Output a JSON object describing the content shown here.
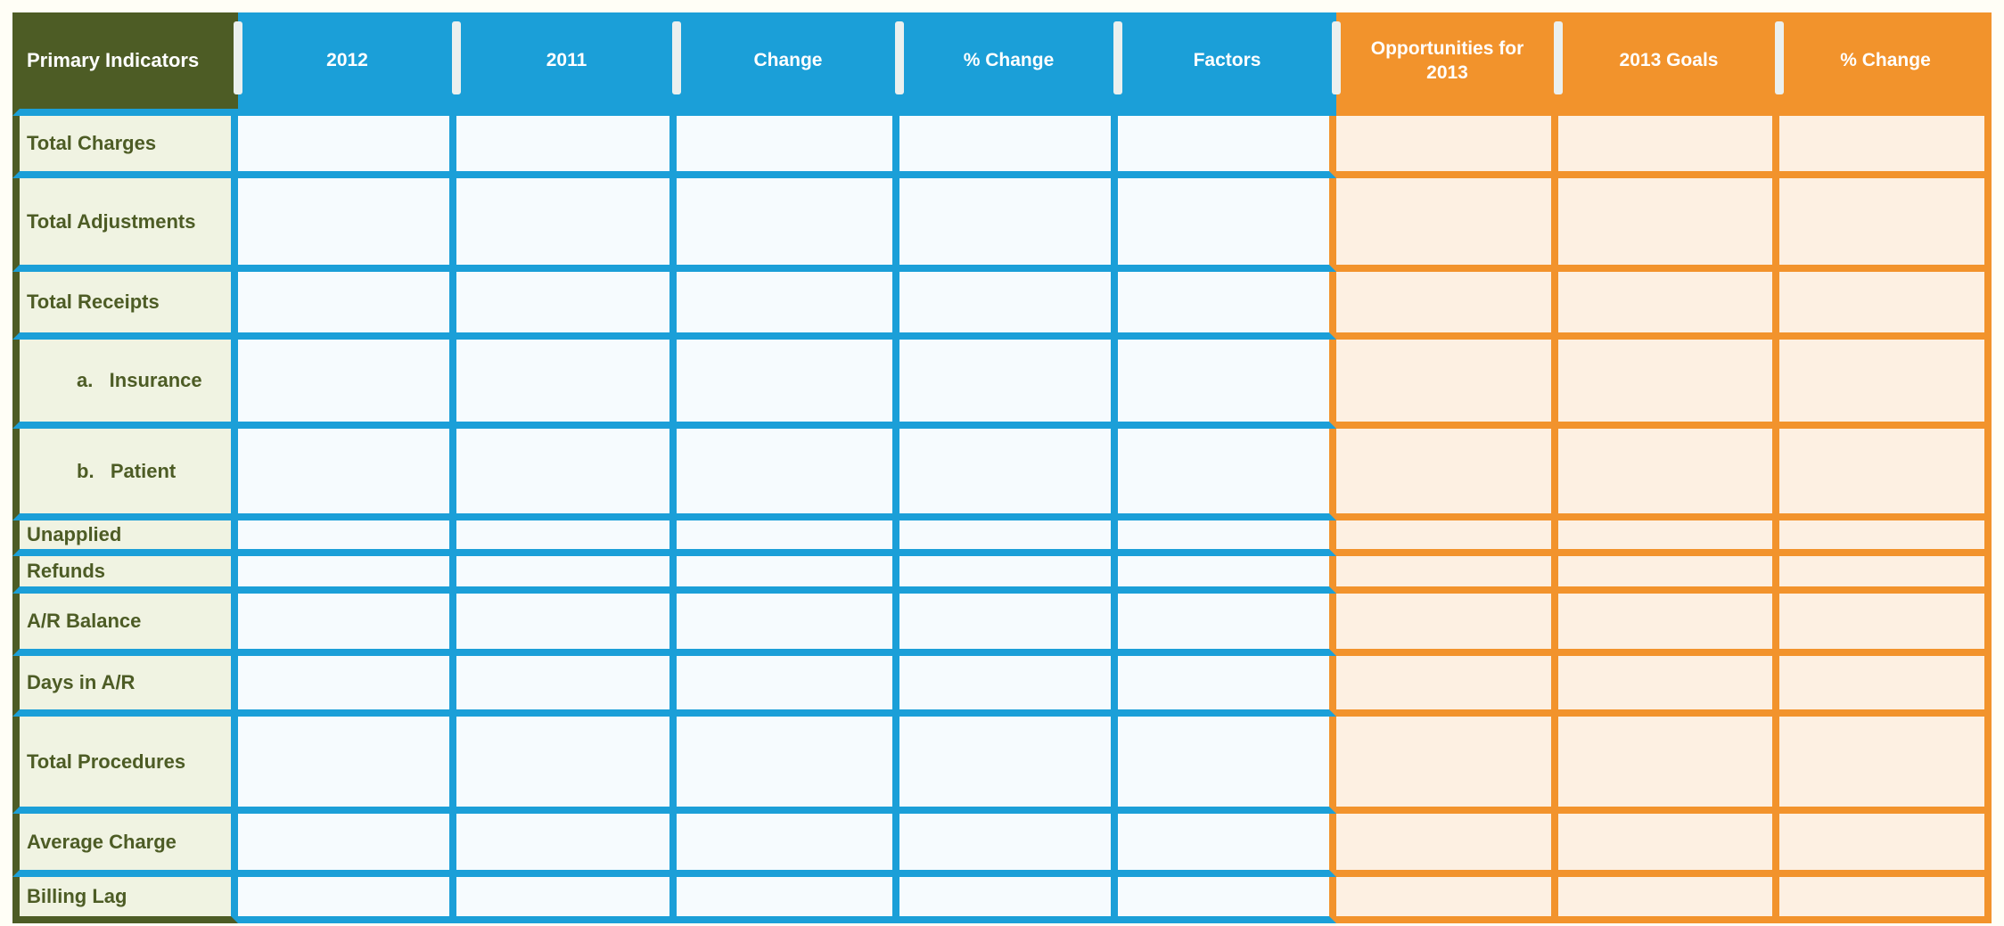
{
  "colors": {
    "olive": "#4d5c25",
    "olive_row_bg": "#f0f3e2",
    "blue": "#1b9fd8",
    "blue_cell_bg": "#f6fbfe",
    "orange": "#f2932c",
    "orange_cell_bg": "#fdf0e2",
    "header_text": "#ffffff",
    "separator": "#ebf0ef",
    "page_background": "#fffef6"
  },
  "table": {
    "columns": [
      {
        "label": "Primary Indicators",
        "section": "label"
      },
      {
        "label": "2012",
        "section": "blue"
      },
      {
        "label": "2011",
        "section": "blue"
      },
      {
        "label": "Change",
        "section": "blue"
      },
      {
        "label": "% Change",
        "section": "blue"
      },
      {
        "label": "Factors",
        "section": "blue"
      },
      {
        "label": "Opportunities for 2013",
        "section": "orange"
      },
      {
        "label": "2013 Goals",
        "section": "orange"
      },
      {
        "label": "% Change",
        "section": "orange"
      }
    ],
    "rows": [
      {
        "label": "Total Charges",
        "indent": false
      },
      {
        "label": "Total Adjustments",
        "indent": false
      },
      {
        "label": "Total Receipts",
        "indent": false
      },
      {
        "label": "a.   Insurance",
        "indent": true
      },
      {
        "label": "b.   Patient",
        "indent": true
      },
      {
        "label": "Unapplied",
        "indent": false
      },
      {
        "label": "Refunds",
        "indent": false
      },
      {
        "label": "A/R Balance",
        "indent": false
      },
      {
        "label": "Days in A/R",
        "indent": false
      },
      {
        "label": "Total Procedures",
        "indent": false
      },
      {
        "label": "Average Charge",
        "indent": false
      },
      {
        "label": "Billing Lag",
        "indent": false
      }
    ],
    "cell_value_placeholder": ""
  }
}
